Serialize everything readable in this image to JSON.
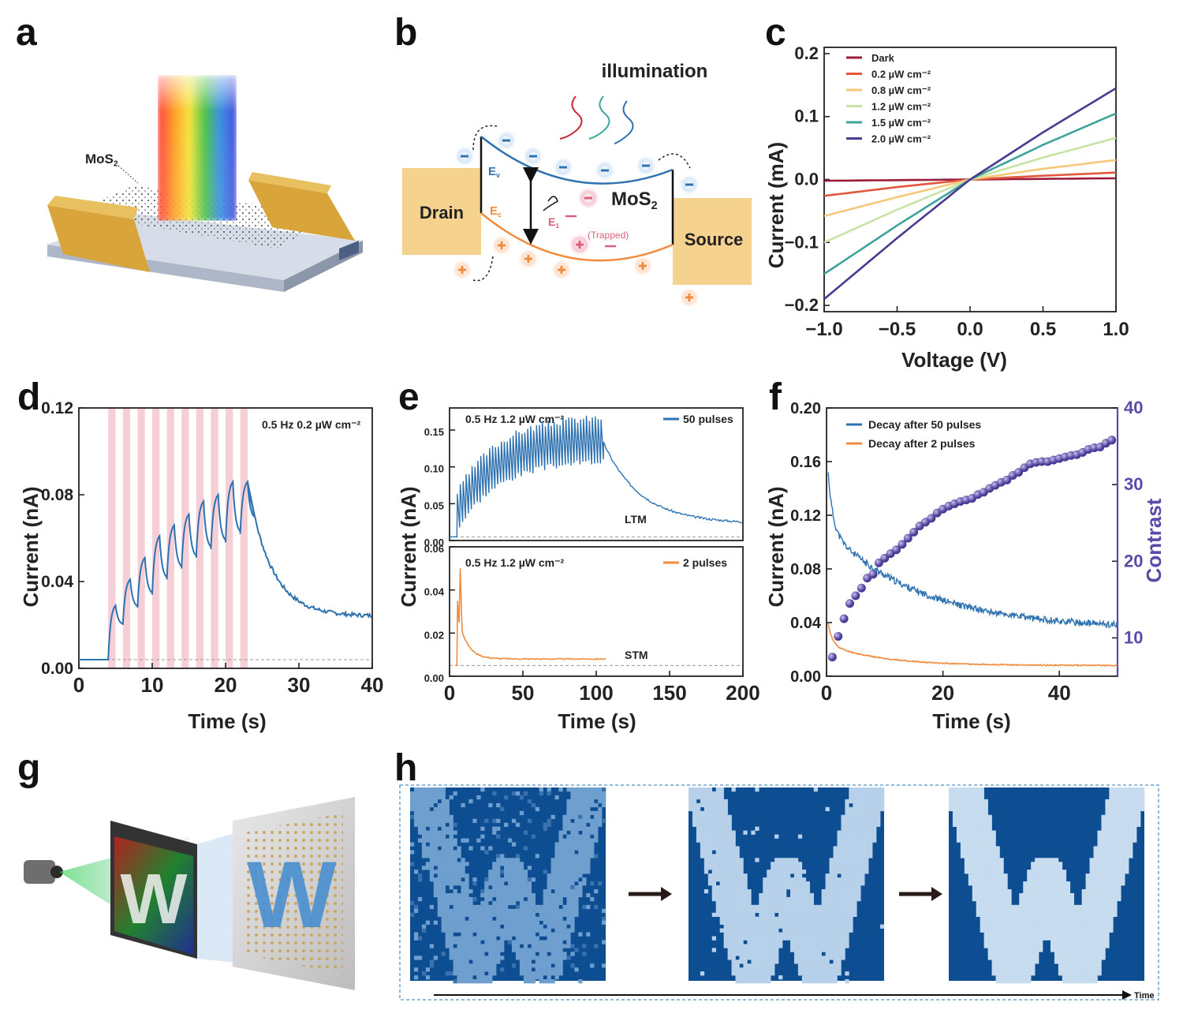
{
  "labels": {
    "a": "a",
    "b": "b",
    "c": "c",
    "d": "d",
    "e": "e",
    "f": "f",
    "g": "g",
    "h": "h"
  },
  "colors": {
    "gold": "#d9a53a",
    "blue_curve": "#2f72b0",
    "orange_curve": "#f28b3c",
    "purple_dot": "#5b4aa7",
    "pink_bar": "#f4c6cf",
    "w_dark": "#0d4d91",
    "w_light": "#c3d8ee"
  },
  "panel_a": {
    "material_label": "MoS2"
  },
  "panel_b": {
    "illumination": "illumination",
    "drain": "Drain",
    "source": "Source",
    "material": "MoS2",
    "ev": "Ev",
    "ec": "Ec",
    "e1": "E1",
    "trapped": "(Trapped)"
  },
  "panel_g": {
    "letter": "W"
  },
  "panel_h": {
    "time_label": "Time"
  },
  "chart_data": [
    {
      "id": "c",
      "type": "line",
      "xlabel": "Voltage (V)",
      "ylabel": "Current (mA)",
      "xlim": [
        -1.0,
        1.0
      ],
      "ylim": [
        -0.21,
        0.21
      ],
      "xticks": [
        "−1.0",
        "−0.5",
        "0.0",
        "0.5",
        "1.0"
      ],
      "yticks": [
        "−0.2",
        "−0.1",
        "0.0",
        "0.1",
        "0.2"
      ],
      "legend_position": "top-left",
      "series": [
        {
          "name": "Dark",
          "color": "#9b1b3a",
          "x": [
            -1,
            -0.5,
            0,
            0.5,
            1
          ],
          "y": [
            -0.002,
            -0.001,
            0,
            0.001,
            0.002
          ]
        },
        {
          "name": "0.2 µW cm⁻²",
          "color": "#e2573d",
          "x": [
            -1,
            -0.5,
            0,
            0.5,
            1
          ],
          "y": [
            -0.026,
            -0.012,
            0,
            0.006,
            0.011
          ]
        },
        {
          "name": "0.8 µW cm⁻²",
          "color": "#f6c87a",
          "x": [
            -1,
            -0.5,
            0,
            0.5,
            1
          ],
          "y": [
            -0.058,
            -0.028,
            0,
            0.017,
            0.031
          ]
        },
        {
          "name": "1.2 µW cm⁻²",
          "color": "#c9e3a6",
          "x": [
            -1,
            -0.5,
            0,
            0.5,
            1
          ],
          "y": [
            -0.1,
            -0.048,
            0,
            0.035,
            0.066
          ]
        },
        {
          "name": "1.5 µW cm⁻²",
          "color": "#3fa39a",
          "x": [
            -1,
            -0.5,
            0,
            0.5,
            1
          ],
          "y": [
            -0.15,
            -0.073,
            0,
            0.055,
            0.105
          ]
        },
        {
          "name": "2.0 µW cm⁻²",
          "color": "#4b3a8f",
          "x": [
            -1,
            -0.5,
            0,
            0.5,
            1
          ],
          "y": [
            -0.19,
            -0.093,
            0,
            0.075,
            0.145
          ]
        }
      ]
    },
    {
      "id": "d",
      "type": "line",
      "xlabel": "Time (s)",
      "ylabel": "Current (nA)",
      "xlim": [
        0,
        40
      ],
      "ylim": [
        0,
        0.12
      ],
      "xticks": [
        "0",
        "10",
        "20",
        "30",
        "40"
      ],
      "yticks": [
        "0.00",
        "0.04",
        "0.08",
        "0.12"
      ],
      "annotation": "0.5 Hz 0.2 µW cm⁻²",
      "pulse_starts": [
        4,
        6,
        8,
        10,
        12,
        14,
        16,
        18,
        20,
        22
      ],
      "pulse_width": 1,
      "peaks": [
        0.029,
        0.041,
        0.051,
        0.061,
        0.066,
        0.071,
        0.077,
        0.08,
        0.086,
        0.086
      ],
      "troughs": [
        0.02,
        0.028,
        0.034,
        0.041,
        0.046,
        0.051,
        0.055,
        0.058,
        0.062
      ],
      "baseline": 0.004,
      "final": 0.024,
      "end_time": 40
    },
    {
      "id": "e_top",
      "type": "line",
      "ylabel": "Current (nA)",
      "xlim": [
        0,
        200
      ],
      "ylim": [
        0,
        0.18
      ],
      "yticks": [
        "0.00",
        "0.05",
        "0.10",
        "0.15"
      ],
      "annotation": "0.5 Hz 1.2 µW cm⁻²",
      "series": [
        {
          "name": "50 pulses",
          "color": "#2f72b0"
        }
      ],
      "label": "LTM",
      "pulses": 50,
      "baseline": 0.005,
      "peak_start": 0.065,
      "peak_end": 0.17,
      "trough_start": 0.02,
      "trough_end": 0.11,
      "train_start": 5,
      "train_end": 105,
      "final": 0.023
    },
    {
      "id": "e_bottom",
      "type": "line",
      "xlabel": "Time (s)",
      "xlim": [
        0,
        200
      ],
      "ylim": [
        0,
        0.06
      ],
      "xticks": [
        "0",
        "50",
        "100",
        "150",
        "200"
      ],
      "yticks": [
        "0.00",
        "0.02",
        "0.04",
        "0.06"
      ],
      "annotation": "0.5 Hz 1.2 µW cm⁻²",
      "series": [
        {
          "name": "2 pulses",
          "color": "#f28b3c"
        }
      ],
      "label": "STM",
      "baseline": 0.005,
      "peaks": [
        0.035,
        0.05
      ],
      "final": 0.008,
      "end_time": 107
    },
    {
      "id": "f",
      "type": "line",
      "xlabel": "Time (s)",
      "ylabel": "Current (nA)",
      "y2label": "Contrast",
      "xlim": [
        0,
        50
      ],
      "ylim": [
        0,
        0.2
      ],
      "y2lim": [
        5,
        40
      ],
      "xticks": [
        "0",
        "20",
        "40"
      ],
      "yticks": [
        "0.00",
        "0.04",
        "0.08",
        "0.12",
        "0.16",
        "0.20"
      ],
      "y2ticks": [
        "10",
        "20",
        "30",
        "40"
      ],
      "legend_position": "top-left",
      "series": [
        {
          "name": "Decay after 50 pulses",
          "color": "#2f72b0",
          "start": 0.172,
          "end": 0.035
        },
        {
          "name": "Decay after 2 pulses",
          "color": "#f28b3c",
          "start": 0.048,
          "end": 0.008
        }
      ],
      "contrast_x": [
        1,
        2,
        3,
        4,
        5,
        6,
        7,
        8,
        9,
        10,
        11,
        12,
        13,
        14,
        15,
        16,
        17,
        18,
        19,
        20,
        21,
        22,
        23,
        24,
        25,
        26,
        27,
        28,
        29,
        30,
        31,
        32,
        33,
        34,
        35,
        36,
        37,
        38,
        39,
        40,
        41,
        42,
        43,
        44,
        45,
        46,
        47,
        48,
        49
      ],
      "contrast_y": [
        7.5,
        10.2,
        12.5,
        14.5,
        15.5,
        16.5,
        17.8,
        18.3,
        19.8,
        20.4,
        21,
        21.5,
        22.2,
        23,
        23.8,
        24.6,
        25.1,
        25.6,
        26.3,
        26.8,
        27.2,
        27.5,
        27.8,
        28,
        28.2,
        28.7,
        29,
        29.5,
        29.9,
        30.3,
        30.6,
        31.2,
        31.6,
        32.2,
        32.7,
        32.9,
        33,
        33,
        33.2,
        33.4,
        33.6,
        33.8,
        33.9,
        34.2,
        34.6,
        34.8,
        34.9,
        35.4,
        35.8
      ]
    }
  ]
}
